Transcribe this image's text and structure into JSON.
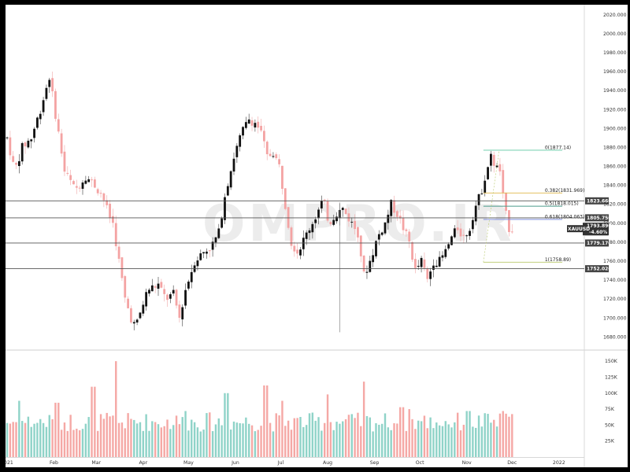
{
  "watermark": "OMPRO.IR",
  "chart_data": [
    {
      "type": "candlestick",
      "symbol": "XAUUSD",
      "last_price": "1793.890",
      "change_pct": "-4.60%",
      "ylim": [
        1672,
        2024
      ],
      "y_ticks": [
        "1680.000",
        "1700.000",
        "1720.000",
        "1740.000",
        "1760.000",
        "1780.000",
        "1800.000",
        "1820.000",
        "1840.000",
        "1860.000",
        "1880.000",
        "1900.000",
        "1920.000",
        "1940.000",
        "1960.000",
        "1980.000",
        "2000.000",
        "2020.000"
      ],
      "x_ticks": [
        "2021",
        "Feb",
        "Mar",
        "Apr",
        "May",
        "Jun",
        "Jul",
        "Aug",
        "Sep",
        "Oct",
        "Nov",
        "Dec",
        "2022"
      ],
      "x_tick_days": [
        0,
        31,
        59,
        90,
        120,
        151,
        181,
        212,
        243,
        273,
        304,
        334,
        365
      ],
      "horizontal_levels": [
        {
          "value": 1823.66,
          "label": "1823.660"
        },
        {
          "value": 1805.75,
          "label": "1805.750"
        },
        {
          "value": 1779.17,
          "label": "1779.170"
        },
        {
          "value": 1752.02,
          "label": "1752.020"
        }
      ],
      "fib_levels": [
        {
          "value": 1877.14,
          "label": "0(1877.14)",
          "color": "#5cc9a0"
        },
        {
          "value": 1831.969,
          "label": "0.382(1831.969)",
          "color": "#e0b84a"
        },
        {
          "value": 1818.015,
          "label": "0.5(1818.015)",
          "color": "#4a9a8a"
        },
        {
          "value": 1804.063,
          "label": "0.618(1804.063)",
          "color": "#6c7fd8"
        },
        {
          "value": 1758.89,
          "label": "1(1758.89)",
          "color": "#b8c96a"
        }
      ],
      "fib_range_days": [
        302,
        362
      ],
      "price_path": [
        [
          0,
          1890
        ],
        [
          5,
          1855
        ],
        [
          10,
          1880
        ],
        [
          16,
          1890
        ],
        [
          22,
          1920
        ],
        [
          28,
          1955
        ],
        [
          33,
          1905
        ],
        [
          38,
          1855
        ],
        [
          45,
          1835
        ],
        [
          52,
          1850
        ],
        [
          58,
          1840
        ],
        [
          63,
          1830
        ],
        [
          67,
          1810
        ],
        [
          70,
          1800
        ],
        [
          74,
          1760
        ],
        [
          78,
          1720
        ],
        [
          82,
          1700
        ],
        [
          85,
          1690
        ],
        [
          88,
          1705
        ],
        [
          93,
          1730
        ],
        [
          100,
          1735
        ],
        [
          105,
          1720
        ],
        [
          110,
          1725
        ],
        [
          114,
          1700
        ],
        [
          118,
          1730
        ],
        [
          124,
          1760
        ],
        [
          130,
          1770
        ],
        [
          135,
          1775
        ],
        [
          140,
          1790
        ],
        [
          144,
          1830
        ],
        [
          150,
          1870
        ],
        [
          155,
          1895
        ],
        [
          160,
          1910
        ],
        [
          165,
          1905
        ],
        [
          168,
          1895
        ],
        [
          172,
          1870
        ],
        [
          176,
          1875
        ],
        [
          180,
          1860
        ],
        [
          184,
          1820
        ],
        [
          188,
          1780
        ],
        [
          192,
          1770
        ],
        [
          196,
          1782
        ],
        [
          200,
          1795
        ],
        [
          205,
          1810
        ],
        [
          209,
          1825
        ],
        [
          213,
          1800
        ],
        [
          217,
          1810
        ],
        [
          222,
          1815
        ],
        [
          228,
          1800
        ],
        [
          232,
          1790
        ],
        [
          236,
          1745
        ],
        [
          240,
          1760
        ],
        [
          245,
          1785
        ],
        [
          250,
          1800
        ],
        [
          254,
          1820
        ],
        [
          258,
          1810
        ],
        [
          262,
          1795
        ],
        [
          266,
          1780
        ],
        [
          270,
          1750
        ],
        [
          274,
          1760
        ],
        [
          278,
          1740
        ],
        [
          282,
          1760
        ],
        [
          286,
          1760
        ],
        [
          290,
          1770
        ],
        [
          294,
          1785
        ],
        [
          298,
          1795
        ],
        [
          302,
          1785
        ],
        [
          306,
          1795
        ],
        [
          309,
          1815
        ],
        [
          313,
          1830
        ],
        [
          317,
          1855
        ],
        [
          320,
          1870
        ],
        [
          323,
          1860
        ],
        [
          326,
          1855
        ],
        [
          329,
          1815
        ],
        [
          332,
          1795
        ],
        [
          334,
          1794
        ]
      ],
      "volume": {
        "y_ticks": [
          "25K",
          "50K",
          "75K",
          "100K",
          "125K",
          "150K"
        ],
        "y_tick_values": [
          25,
          50,
          75,
          100,
          125,
          150
        ],
        "ylim": [
          0,
          160
        ],
        "spikes": [
          [
            8,
            88
          ],
          [
            33,
            85
          ],
          [
            57,
            110
          ],
          [
            72,
            150
          ],
          [
            118,
            72
          ],
          [
            145,
            100
          ],
          [
            171,
            112
          ],
          [
            182,
            88
          ],
          [
            212,
            98
          ],
          [
            236,
            118
          ],
          [
            261,
            78
          ],
          [
            266,
            75
          ],
          [
            305,
            72
          ],
          [
            328,
            72
          ]
        ]
      }
    }
  ]
}
